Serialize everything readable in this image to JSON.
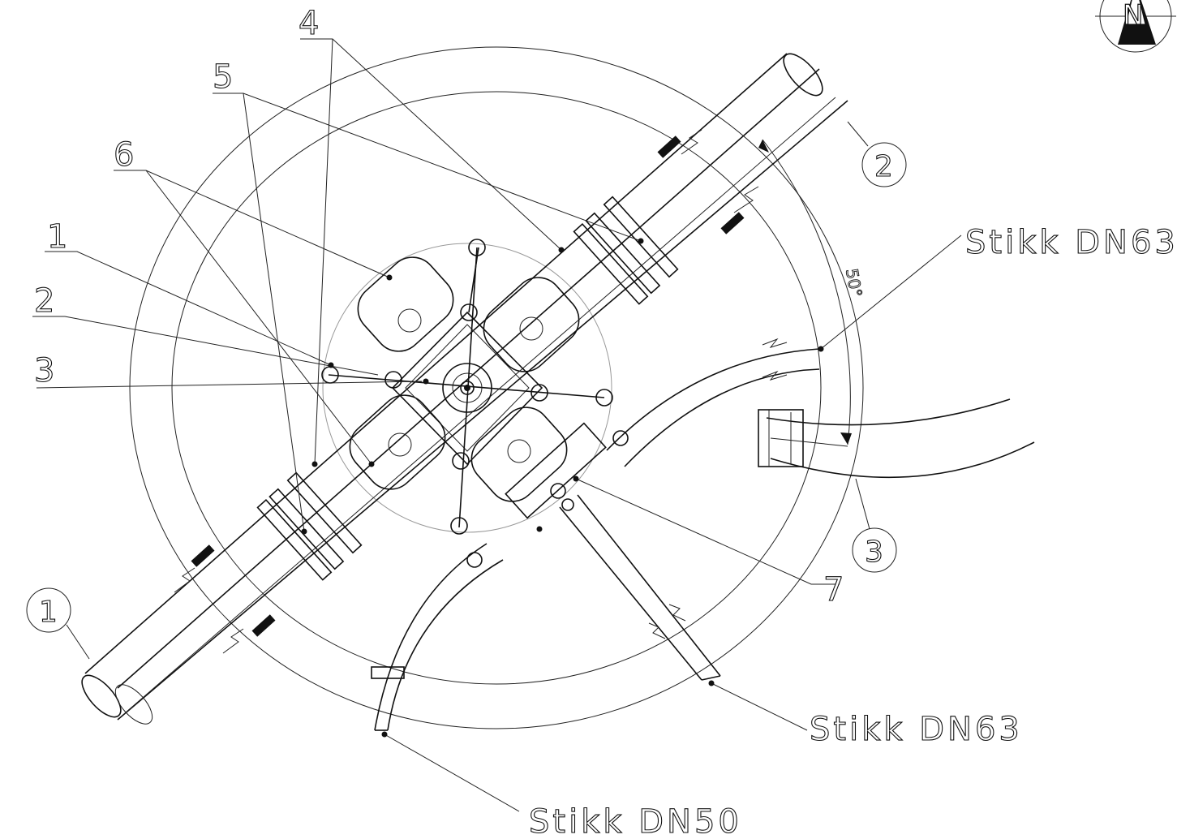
{
  "drawing": {
    "north_marker": "N",
    "angle_label": "50°",
    "pipes": [
      {
        "id": "pipe-1",
        "label": "1"
      },
      {
        "id": "pipe-2",
        "label": "2"
      },
      {
        "id": "pipe-3",
        "label": "3"
      }
    ],
    "part_labels": [
      "1",
      "2",
      "3",
      "4",
      "5",
      "6",
      "7"
    ],
    "service_labels": {
      "upper_right": "Stikk DN63",
      "lower_right": "Stikk DN63",
      "bottom": "Stikk DN50"
    }
  }
}
